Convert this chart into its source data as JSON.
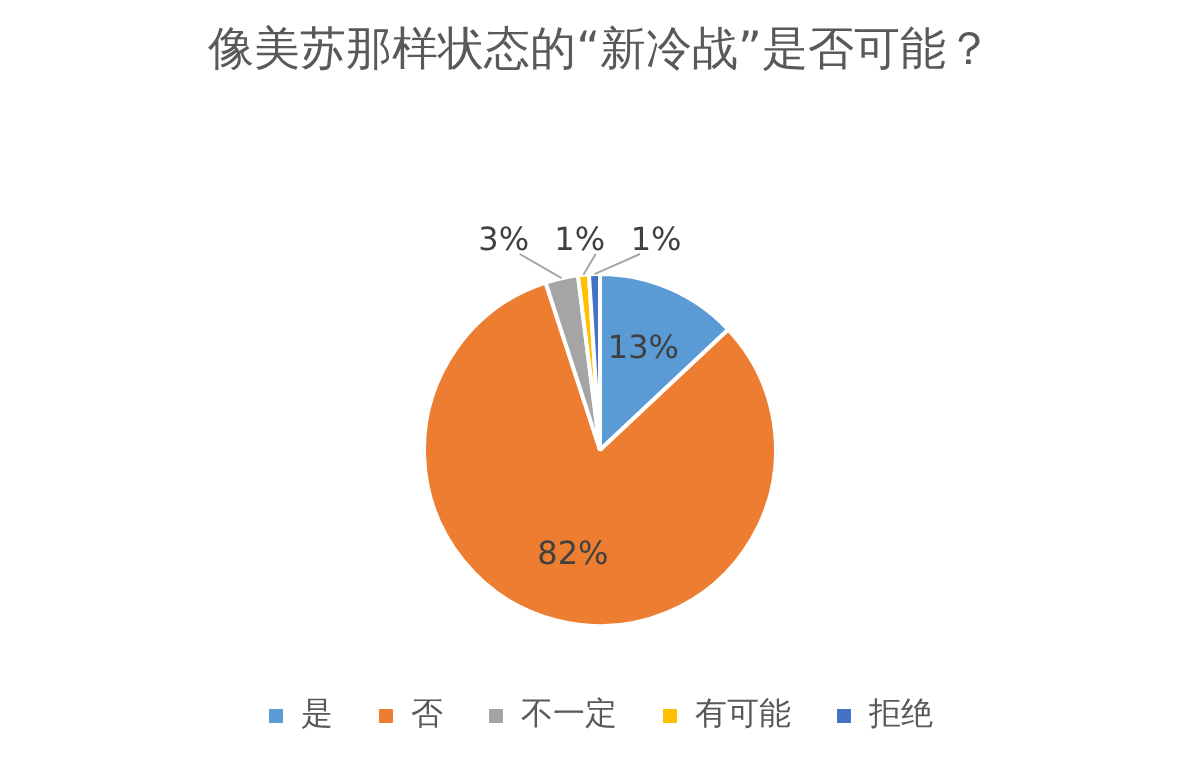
{
  "chart_data": {
    "type": "pie",
    "title": "像美苏那样状态的“新冷战”是否可能？",
    "categories": [
      "是",
      "否",
      "不一定",
      "有可能",
      "拒绝"
    ],
    "values": [
      13,
      82,
      3,
      1,
      1
    ],
    "value_labels": [
      "13%",
      "82%",
      "3%",
      "1%",
      "1%"
    ],
    "colors": [
      "#5b9bd5",
      "#ed7d31",
      "#a5a5a5",
      "#ffc000",
      "#4472c4"
    ],
    "legend": "bottom"
  }
}
